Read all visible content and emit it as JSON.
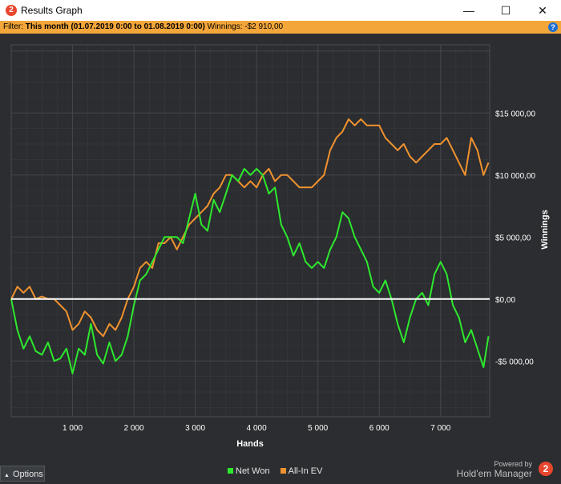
{
  "window": {
    "title": "Results Graph",
    "app_icon": "2",
    "controls": {
      "minimize": "—",
      "maximize": "☐",
      "close": "✕"
    }
  },
  "filter": {
    "label": "Filter:",
    "value": "This month (01.07.2019 0:00 to 01.08.2019 0:00)",
    "winnings_label": "Winnings:",
    "winnings_value": "-$2 910,00",
    "help_icon": "?"
  },
  "colors": {
    "background": "#2b2d30",
    "grid": "#44474b",
    "net_won": "#2ee82e",
    "all_in_ev": "#f0922f",
    "zero_line": "#ffffff",
    "filter_bar": "#f3a63a"
  },
  "bottom": {
    "options_label": "Options",
    "powered_by": "Powered by",
    "brand": "Hold'em Manager",
    "brand_logo": "2"
  },
  "chart_data": {
    "type": "line",
    "xlabel": "Hands",
    "ylabel": "Winnings",
    "x_ticks": [
      1000,
      2000,
      3000,
      4000,
      5000,
      6000,
      7000
    ],
    "x_tick_labels": [
      "1 000",
      "2 000",
      "3 000",
      "4 000",
      "5 000",
      "6 000",
      "7 000"
    ],
    "y_ticks": [
      -5000,
      0,
      5000,
      10000,
      15000
    ],
    "y_tick_labels": [
      "-$5 000,00",
      "$0,00",
      "$5 000,00",
      "$10 000,00",
      "$15 000,00"
    ],
    "xlim": [
      0,
      7800
    ],
    "ylim": [
      -9500,
      20500
    ],
    "grid": true,
    "legend_position": "bottom",
    "series": [
      {
        "name": "Net Won",
        "color": "#2ee82e",
        "x": [
          0,
          100,
          200,
          300,
          400,
          500,
          600,
          700,
          800,
          900,
          1000,
          1100,
          1200,
          1300,
          1400,
          1500,
          1600,
          1700,
          1800,
          1900,
          2000,
          2100,
          2200,
          2300,
          2400,
          2500,
          2600,
          2700,
          2800,
          2900,
          3000,
          3100,
          3200,
          3300,
          3400,
          3500,
          3600,
          3700,
          3800,
          3900,
          4000,
          4100,
          4200,
          4300,
          4400,
          4500,
          4600,
          4700,
          4800,
          4900,
          5000,
          5100,
          5200,
          5300,
          5400,
          5500,
          5600,
          5700,
          5800,
          5900,
          6000,
          6100,
          6200,
          6300,
          6400,
          6500,
          6600,
          6700,
          6800,
          6900,
          7000,
          7100,
          7200,
          7300,
          7400,
          7500,
          7600,
          7700,
          7780
        ],
        "y": [
          0,
          -2500,
          -4000,
          -3000,
          -4200,
          -4500,
          -3500,
          -5000,
          -4800,
          -4000,
          -6000,
          -4000,
          -4500,
          -2000,
          -4500,
          -5200,
          -3500,
          -5000,
          -4500,
          -3000,
          -500,
          1500,
          2000,
          3000,
          4000,
          5000,
          5000,
          5000,
          4500,
          6500,
          8500,
          6000,
          5500,
          8000,
          7000,
          8500,
          10000,
          9500,
          10500,
          10000,
          10500,
          10000,
          8500,
          9000,
          6000,
          5000,
          3500,
          4500,
          3000,
          2500,
          3000,
          2500,
          4000,
          5000,
          7000,
          6500,
          5000,
          4000,
          3000,
          1000,
          500,
          1500,
          0,
          -2000,
          -3500,
          -1500,
          0,
          500,
          -500,
          2000,
          3000,
          2000,
          -500,
          -1500,
          -3500,
          -2500,
          -4000,
          -5500,
          -3000
        ]
      },
      {
        "name": "All-In EV",
        "color": "#f0922f",
        "x": [
          0,
          100,
          200,
          300,
          400,
          500,
          600,
          700,
          800,
          900,
          1000,
          1100,
          1200,
          1300,
          1400,
          1500,
          1600,
          1700,
          1800,
          1900,
          2000,
          2100,
          2200,
          2300,
          2400,
          2500,
          2600,
          2700,
          2800,
          2900,
          3000,
          3100,
          3200,
          3300,
          3400,
          3500,
          3600,
          3700,
          3800,
          3900,
          4000,
          4100,
          4200,
          4300,
          4400,
          4500,
          4600,
          4700,
          4800,
          4900,
          5000,
          5100,
          5200,
          5300,
          5400,
          5500,
          5600,
          5700,
          5800,
          5900,
          6000,
          6100,
          6200,
          6300,
          6400,
          6500,
          6600,
          6700,
          6800,
          6900,
          7000,
          7100,
          7200,
          7300,
          7400,
          7500,
          7600,
          7700,
          7780
        ],
        "y": [
          0,
          1000,
          500,
          1000,
          0,
          200,
          0,
          0,
          -500,
          -1000,
          -2500,
          -2000,
          -1000,
          -1500,
          -2500,
          -3000,
          -2000,
          -2500,
          -1500,
          0,
          1000,
          2500,
          3000,
          2500,
          4500,
          4500,
          5000,
          4000,
          5000,
          6000,
          6500,
          7000,
          7500,
          8500,
          9000,
          10000,
          10000,
          9500,
          9000,
          9500,
          9000,
          10000,
          10500,
          9500,
          10000,
          10000,
          9500,
          9000,
          9000,
          9000,
          9500,
          10000,
          12000,
          13000,
          13500,
          14500,
          14000,
          14500,
          14000,
          14000,
          14000,
          13000,
          12500,
          12000,
          12500,
          11500,
          11000,
          11500,
          12000,
          12500,
          12500,
          13000,
          12000,
          11000,
          10000,
          13000,
          12000,
          10000,
          11000
        ]
      }
    ]
  }
}
